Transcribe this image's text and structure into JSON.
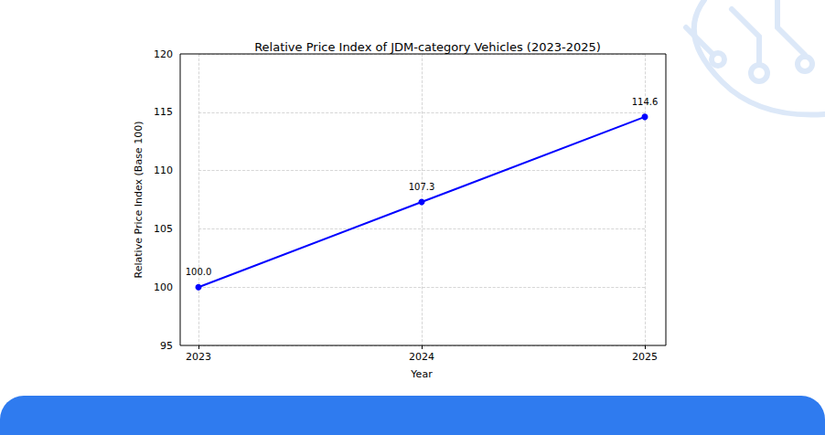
{
  "chart_data": {
    "type": "line",
    "title": "Relative Price Index of JDM-category Vehicles (2023-2025)",
    "x_label": "Year",
    "y_label": "Relative Price Index (Base 100)",
    "categories": [
      "2023",
      "2024",
      "2025"
    ],
    "values": [
      100.0,
      107.3,
      114.6
    ],
    "value_labels": [
      "100.0",
      "107.3",
      "114.6"
    ],
    "data_labels": true,
    "color": "#0000ff",
    "marker": "circle",
    "line_style": "solid",
    "ylim": [
      95,
      120
    ],
    "yticks": [
      95,
      100,
      105,
      110,
      115,
      120
    ],
    "grid": true
  }
}
